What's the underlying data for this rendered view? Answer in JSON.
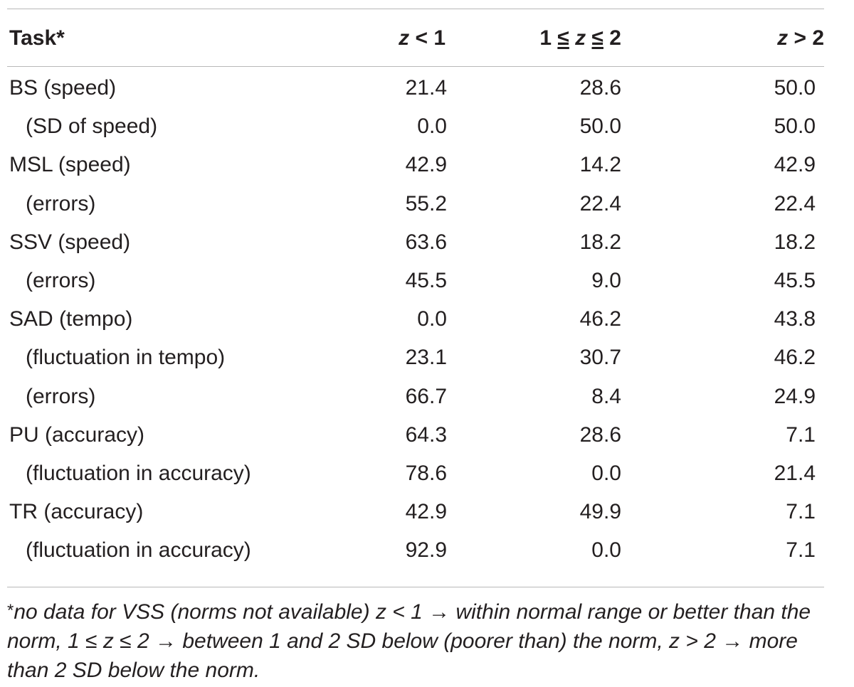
{
  "table": {
    "headers": {
      "task": "Task*",
      "col1_var": "z",
      "col1_rest": " < 1",
      "col2_pre": "1 ",
      "col2_le1": "≤",
      "col2_var": " z ",
      "col2_le2": "≤",
      "col2_post": " 2",
      "col3_var": "z",
      "col3_rest": " > 2"
    },
    "rows": [
      {
        "task": "BS (speed)",
        "v1": "21.4",
        "v2": "28.6",
        "v3": "50.0"
      },
      {
        "task": "(SD of speed)",
        "v1": "0.0",
        "v2": "50.0",
        "v3": "50.0"
      },
      {
        "task": "MSL (speed)",
        "v1": "42.9",
        "v2": "14.2",
        "v3": "42.9"
      },
      {
        "task": "(errors)",
        "v1": "55.2",
        "v2": "22.4",
        "v3": "22.4"
      },
      {
        "task": "SSV (speed)",
        "v1": "63.6",
        "v2": "18.2",
        "v3": "18.2"
      },
      {
        "task": "(errors)",
        "v1": "45.5",
        "v2": "9.0",
        "v3": "45.5"
      },
      {
        "task": "SAD (tempo)",
        "v1": "0.0",
        "v2": "46.2",
        "v3": "43.8"
      },
      {
        "task": "(fluctuation in tempo)",
        "v1": "23.1",
        "v2": "30.7",
        "v3": "46.2"
      },
      {
        "task": "(errors)",
        "v1": "66.7",
        "v2": "8.4",
        "v3": "24.9"
      },
      {
        "task": "PU (accuracy)",
        "v1": "64.3",
        "v2": "28.6",
        "v3": "7.1"
      },
      {
        "task": "(fluctuation in accuracy)",
        "v1": "78.6",
        "v2": "0.0",
        "v3": "21.4"
      },
      {
        "task": "TR (accuracy)",
        "v1": "42.9",
        "v2": "49.9",
        "v3": "7.1"
      },
      {
        "task": "(fluctuation in accuracy)",
        "v1": "92.9",
        "v2": "0.0",
        "v3": "7.1"
      }
    ]
  },
  "footnote": {
    "marker": "*",
    "text": "no data for VSS (norms not available) z < 1 → within normal range or better than the norm, 1 ≤ z ≤ 2 → between 1 and 2 SD below (poorer than) the norm, z > 2 → more than 2 SD below the norm."
  }
}
